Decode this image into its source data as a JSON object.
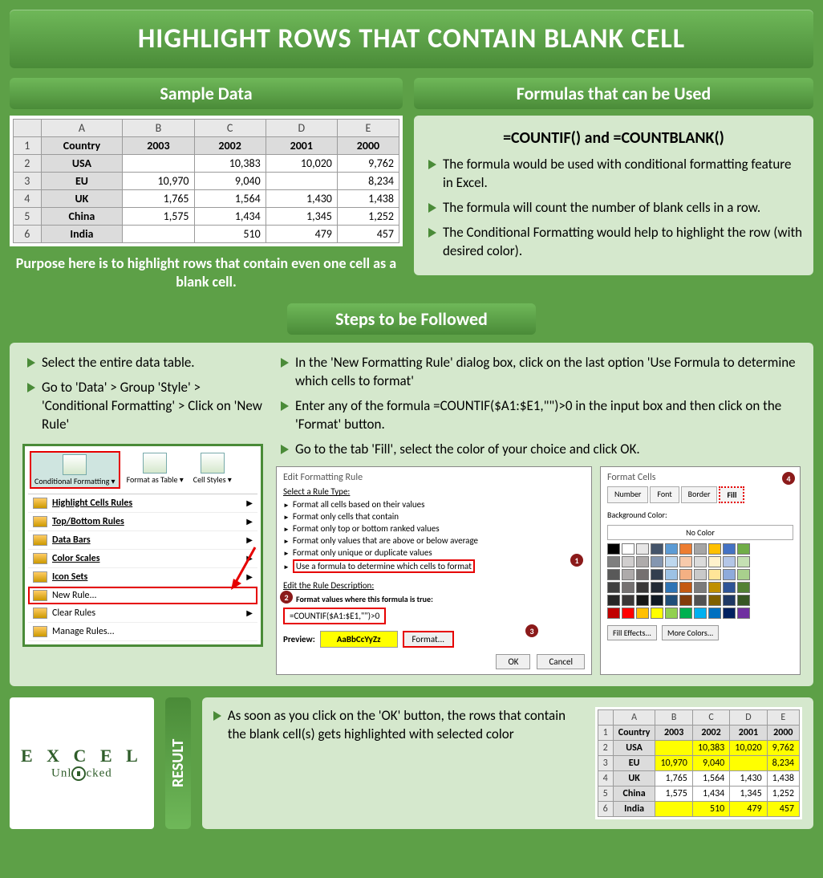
{
  "title": "HIGHLIGHT ROWS THAT CONTAIN BLANK CELL",
  "sample": {
    "heading": "Sample Data",
    "cols": [
      "",
      "A",
      "B",
      "C",
      "D",
      "E"
    ],
    "head_row": [
      "1",
      "Country",
      "2003",
      "2002",
      "2001",
      "2000"
    ],
    "rows": [
      [
        "2",
        "USA",
        "",
        "10,383",
        "10,020",
        "9,762"
      ],
      [
        "3",
        "EU",
        "10,970",
        "9,040",
        "",
        "8,234"
      ],
      [
        "4",
        "UK",
        "1,765",
        "1,564",
        "1,430",
        "1,438"
      ],
      [
        "5",
        "China",
        "1,575",
        "1,434",
        "1,345",
        "1,252"
      ],
      [
        "6",
        "India",
        "",
        "510",
        "479",
        "457"
      ]
    ],
    "purpose": "Purpose here is to highlight rows that contain even one cell as a blank cell."
  },
  "formulas": {
    "heading": "Formulas that can be Used",
    "title": "=COUNTIF() and =COUNTBLANK()",
    "points": [
      "The formula would be used with conditional formatting feature in Excel.",
      "The formula will count the number of blank cells in a row.",
      "The Conditional Formatting would help to highlight the row (with desired color)."
    ]
  },
  "steps": {
    "heading": "Steps to be Followed",
    "left": [
      "Select the entire data table.",
      "Go to 'Data' > Group 'Style' > 'Conditional Formatting' > Click on 'New Rule'"
    ],
    "right": [
      "In the 'New Formatting Rule' dialog box, click on the last option 'Use Formula to determine which cells to format'",
      "Enter any of the formula =COUNTIF($A1:$E1,\"\")>0 in the input box and then click on the 'Format' button.",
      "Go to the tab 'Fill', select the color of your choice and click OK."
    ],
    "ribbon": {
      "items": [
        "Conditional Formatting ▾",
        "Format as Table ▾",
        "Cell Styles ▾"
      ],
      "menu": [
        "Highlight Cells Rules",
        "Top/Bottom Rules",
        "Data Bars",
        "Color Scales",
        "Icon Sets",
        "New Rule...",
        "Clear Rules",
        "Manage Rules..."
      ]
    },
    "dialog": {
      "title": "Edit Formatting Rule",
      "select_label": "Select a Rule Type:",
      "rules": [
        "Format all cells based on their values",
        "Format only cells that contain",
        "Format only top or bottom ranked values",
        "Format only values that are above or below average",
        "Format only unique or duplicate values",
        "Use a formula to determine which cells to format"
      ],
      "desc_label": "Edit the Rule Description:",
      "desc_sub": "Format values where this formula is true:",
      "formula": "=COUNTIF($A1:$E1,\"\")>0",
      "preview_label": "Preview:",
      "preview_text": "AaBbCcYyZz",
      "format_btn": "Format...",
      "ok": "OK",
      "cancel": "Cancel"
    },
    "format_cells": {
      "title": "Format Cells",
      "tabs": [
        "Number",
        "Font",
        "Border",
        "Fill"
      ],
      "bg_label": "Background Color:",
      "nocolor": "No Color",
      "fill_effects": "Fill Effects...",
      "more_colors": "More Colors...",
      "palette": [
        "#000000",
        "#ffffff",
        "#e7e6e6",
        "#44546a",
        "#5b9bd5",
        "#ed7d31",
        "#a5a5a5",
        "#ffc000",
        "#4472c4",
        "#70ad47",
        "#7f7f7f",
        "#d0cece",
        "#aeabab",
        "#8496b0",
        "#bdd7ee",
        "#f7caac",
        "#dbdbdb",
        "#fff2cc",
        "#b4c6e7",
        "#c5e0b3",
        "#595959",
        "#aeaaaa",
        "#757070",
        "#333f4f",
        "#9cc2e5",
        "#f4b083",
        "#c9c9c9",
        "#ffe598",
        "#8eaadb",
        "#a8d08d",
        "#404040",
        "#757171",
        "#3a3838",
        "#222a35",
        "#2e74b5",
        "#c45911",
        "#7b7b7b",
        "#bf8f00",
        "#2f5496",
        "#538135",
        "#262626",
        "#3b3838",
        "#161616",
        "#0f1924",
        "#1f4e79",
        "#833c0b",
        "#525252",
        "#806000",
        "#1f3864",
        "#375623",
        "#c00000",
        "#ff0000",
        "#ffc000",
        "#ffff00",
        "#92d050",
        "#00b050",
        "#00b0f0",
        "#0070c0",
        "#002060",
        "#7030a0"
      ]
    }
  },
  "result": {
    "pill": "RESULT",
    "text": "As soon as you click on the 'OK' button, the rows that contain the blank cell(s) gets highlighted with selected color",
    "highlight_rows": [
      0,
      1,
      4
    ]
  },
  "logo": {
    "line1": "E X C E L",
    "line2": "Unl   cked"
  }
}
